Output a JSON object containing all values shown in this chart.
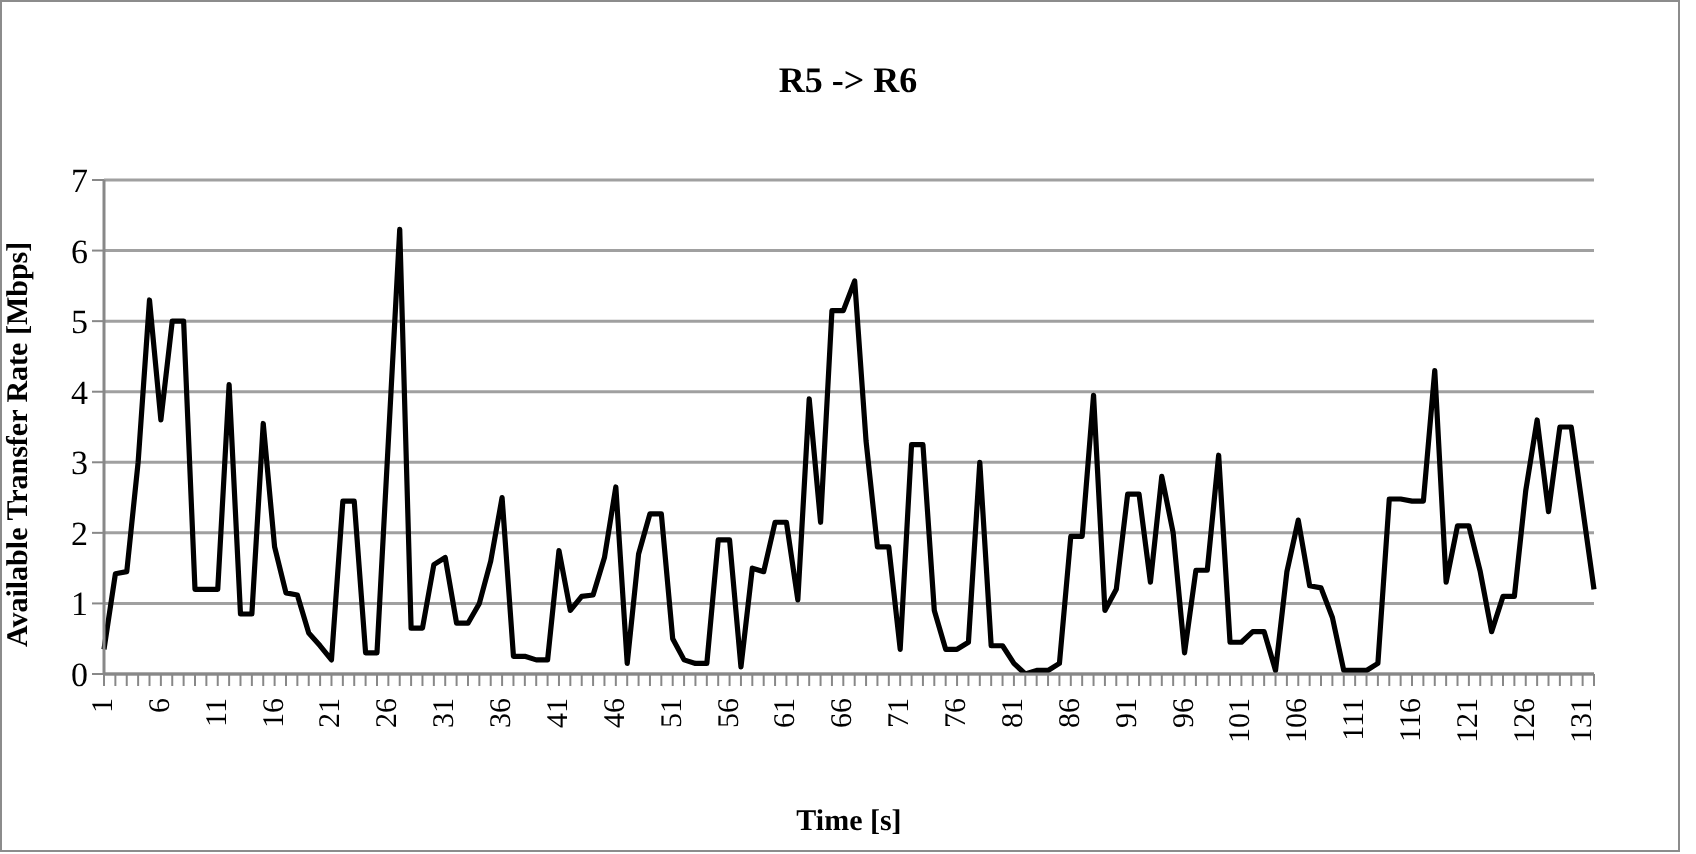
{
  "chart_data": {
    "type": "line",
    "title": "R5 -> R6",
    "xlabel": "Time [s]",
    "ylabel": "Available Transfer Rate [Mbps]",
    "categories": [
      "1",
      null,
      null,
      null,
      null,
      "6",
      null,
      null,
      null,
      null,
      "11",
      null,
      null,
      null,
      null,
      "16",
      null,
      null,
      null,
      null,
      "21",
      null,
      null,
      null,
      null,
      "26",
      null,
      null,
      null,
      null,
      "31",
      null,
      null,
      null,
      null,
      "36",
      null,
      null,
      null,
      null,
      "41",
      null,
      null,
      null,
      null,
      "46",
      null,
      null,
      null,
      null,
      "51",
      null,
      null,
      null,
      null,
      "56",
      null,
      null,
      null,
      null,
      "61",
      null,
      null,
      null,
      null,
      "66",
      null,
      null,
      null,
      null,
      "71",
      null,
      null,
      null,
      null,
      "76",
      null,
      null,
      null,
      null,
      "81",
      null,
      null,
      null,
      null,
      "86",
      null,
      null,
      null,
      null,
      "91",
      null,
      null,
      null,
      null,
      "96",
      null,
      null,
      null,
      null,
      "101",
      null,
      null,
      null,
      null,
      "106",
      null,
      null,
      null,
      null,
      "111",
      null,
      null,
      null,
      null,
      "116",
      null,
      null,
      null,
      null,
      "121",
      null,
      null,
      null,
      null,
      "126",
      null,
      null,
      null,
      null,
      "131",
      null
    ],
    "series": [
      {
        "color": "#000000",
        "values": [
          0.35,
          1.42,
          1.45,
          3.0,
          5.3,
          3.6,
          5.0,
          5.0,
          1.2,
          1.2,
          1.2,
          4.1,
          0.85,
          0.85,
          3.55,
          1.8,
          1.15,
          1.12,
          0.58,
          0.4,
          0.2,
          2.45,
          2.45,
          0.3,
          0.3,
          3.3,
          6.3,
          0.65,
          0.65,
          1.55,
          1.65,
          0.72,
          0.72,
          1.0,
          1.6,
          2.5,
          0.25,
          0.25,
          0.2,
          0.2,
          1.75,
          0.9,
          1.1,
          1.12,
          1.65,
          2.65,
          0.15,
          1.7,
          2.27,
          2.27,
          0.5,
          0.2,
          0.15,
          0.15,
          1.9,
          1.9,
          0.1,
          1.5,
          1.45,
          2.15,
          2.15,
          1.05,
          3.9,
          2.15,
          5.15,
          5.15,
          5.57,
          3.3,
          1.8,
          1.8,
          0.35,
          3.25,
          3.25,
          0.9,
          0.35,
          0.35,
          0.45,
          3.0,
          0.4,
          0.4,
          0.15,
          0.0,
          0.05,
          0.05,
          0.15,
          1.95,
          1.95,
          3.95,
          0.9,
          1.2,
          2.55,
          2.55,
          1.3,
          2.8,
          2.0,
          0.3,
          1.47,
          1.47,
          3.1,
          0.45,
          0.45,
          0.6,
          0.6,
          0.05,
          1.45,
          2.18,
          1.25,
          1.22,
          0.8,
          0.05,
          0.05,
          0.05,
          0.15,
          2.48,
          2.48,
          2.45,
          2.45,
          4.3,
          1.3,
          2.1,
          2.1,
          1.45,
          0.6,
          1.1,
          1.1,
          2.6,
          3.6,
          2.3,
          3.5,
          3.5,
          2.35,
          1.2
        ]
      }
    ],
    "ylim": [
      0,
      7
    ],
    "yticks": [
      0,
      1,
      2,
      3,
      4,
      5,
      6,
      7
    ],
    "grid": "y",
    "legend": false,
    "marker": "none",
    "line_style": "solid"
  }
}
